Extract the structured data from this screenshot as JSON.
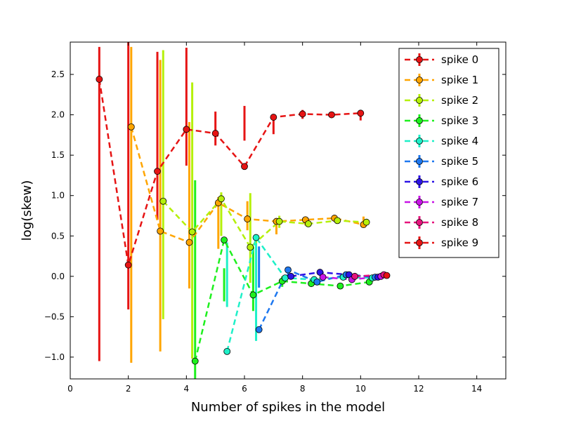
{
  "chart_data": {
    "type": "scatter",
    "title": "",
    "xlabel": "Number of spikes in the model",
    "ylabel": "log(skew)",
    "xlim": [
      0,
      15
    ],
    "ylim": [
      -1.27,
      2.9
    ],
    "xticks": [
      "0",
      "2",
      "4",
      "6",
      "8",
      "10",
      "12",
      "14"
    ],
    "xtick_values": [
      0,
      2,
      4,
      6,
      8,
      10,
      12,
      14
    ],
    "yticks": [
      "−1.0",
      "−0.5",
      "0.0",
      "0.5",
      "1.0",
      "1.5",
      "2.0",
      "2.5"
    ],
    "ytick_values": [
      -1.0,
      -0.5,
      0.0,
      0.5,
      1.0,
      1.5,
      2.0,
      2.5
    ],
    "grid": false,
    "legend_position": "top-right",
    "series": [
      {
        "name": "spike 0",
        "color": "#e61414",
        "points": [
          {
            "x": 1.0,
            "y": 2.44,
            "lo": -1.05,
            "hi": 2.84
          },
          {
            "x": 2.0,
            "y": 0.14,
            "lo": -0.41,
            "hi": 2.9
          },
          {
            "x": 3.0,
            "y": 1.3,
            "lo": 0.7,
            "hi": 2.78
          },
          {
            "x": 4.0,
            "y": 1.82,
            "lo": 1.37,
            "hi": 2.83
          },
          {
            "x": 5.0,
            "y": 1.77,
            "lo": 1.62,
            "hi": 2.04
          },
          {
            "x": 6.0,
            "y": 1.36,
            "lo": 1.68,
            "hi": 2.11
          },
          {
            "x": 7.0,
            "y": 1.97,
            "lo": 1.76,
            "hi": 2.0
          },
          {
            "x": 8.0,
            "y": 2.01,
            "lo": 1.95,
            "hi": 2.06
          },
          {
            "x": 9.0,
            "y": 2.0,
            "lo": 1.98,
            "hi": 2.02
          },
          {
            "x": 10.0,
            "y": 2.02,
            "lo": 1.93,
            "hi": 2.06
          }
        ]
      },
      {
        "name": "spike 1",
        "color": "#ffa500",
        "points": [
          {
            "x": 2.1,
            "y": 1.85,
            "lo": -1.07,
            "hi": 2.84
          },
          {
            "x": 3.1,
            "y": 0.56,
            "lo": -0.93,
            "hi": 2.68
          },
          {
            "x": 4.1,
            "y": 0.42,
            "lo": -0.15,
            "hi": 1.91
          },
          {
            "x": 5.1,
            "y": 0.91,
            "lo": 0.34,
            "hi": 0.98
          },
          {
            "x": 6.1,
            "y": 0.71,
            "lo": 0.57,
            "hi": 0.93
          },
          {
            "x": 7.1,
            "y": 0.68,
            "lo": 0.52,
            "hi": 0.72
          },
          {
            "x": 8.1,
            "y": 0.7,
            "lo": 0.63,
            "hi": 0.74
          },
          {
            "x": 9.1,
            "y": 0.72,
            "lo": 0.69,
            "hi": 0.75
          },
          {
            "x": 10.1,
            "y": 0.64,
            "lo": 0.61,
            "hi": 0.74
          }
        ]
      },
      {
        "name": "spike 2",
        "color": "#b5f00a",
        "points": [
          {
            "x": 3.2,
            "y": 0.93,
            "lo": -0.53,
            "hi": 2.8
          },
          {
            "x": 4.2,
            "y": 0.55,
            "lo": -1.02,
            "hi": 2.4
          },
          {
            "x": 5.2,
            "y": 0.96,
            "lo": 0.5,
            "hi": 1.04
          },
          {
            "x": 6.2,
            "y": 0.36,
            "lo": -0.08,
            "hi": 1.03
          },
          {
            "x": 7.2,
            "y": 0.68,
            "lo": 0.6,
            "hi": 0.75
          },
          {
            "x": 8.2,
            "y": 0.65,
            "lo": 0.62,
            "hi": 0.69
          },
          {
            "x": 9.2,
            "y": 0.69,
            "lo": 0.67,
            "hi": 0.72
          },
          {
            "x": 10.2,
            "y": 0.67,
            "lo": 0.64,
            "hi": 0.71
          }
        ]
      },
      {
        "name": "spike 3",
        "color": "#1ef01e",
        "points": [
          {
            "x": 4.3,
            "y": -1.05,
            "lo": -1.27,
            "hi": 1.19
          },
          {
            "x": 5.3,
            "y": 0.45,
            "lo": -0.31,
            "hi": 0.1
          },
          {
            "x": 6.3,
            "y": -0.23,
            "lo": -0.43,
            "hi": 0.37
          },
          {
            "x": 7.3,
            "y": -0.06,
            "lo": -0.13,
            "hi": 0.0
          },
          {
            "x": 8.3,
            "y": -0.09,
            "lo": -0.11,
            "hi": -0.04
          },
          {
            "x": 9.3,
            "y": -0.12,
            "lo": -0.13,
            "hi": -0.09
          },
          {
            "x": 10.3,
            "y": -0.07,
            "lo": -0.09,
            "hi": -0.04
          }
        ]
      },
      {
        "name": "spike 4",
        "color": "#1ef0c8",
        "points": [
          {
            "x": 5.4,
            "y": -0.93,
            "lo": -0.38,
            "hi": 0.42
          },
          {
            "x": 6.4,
            "y": 0.48,
            "lo": -0.8,
            "hi": 0.5
          },
          {
            "x": 7.4,
            "y": -0.02,
            "lo": -0.04,
            "hi": 0.02
          },
          {
            "x": 8.4,
            "y": -0.04,
            "lo": -0.06,
            "hi": -0.02
          },
          {
            "x": 9.4,
            "y": -0.01,
            "lo": -0.03,
            "hi": 0.01
          },
          {
            "x": 10.4,
            "y": -0.02,
            "lo": -0.04,
            "hi": 0.0
          }
        ]
      },
      {
        "name": "spike 5",
        "color": "#1e78f0",
        "points": [
          {
            "x": 6.5,
            "y": -0.66,
            "lo": -0.14,
            "hi": 0.37
          },
          {
            "x": 7.5,
            "y": 0.08,
            "lo": 0.01,
            "hi": 0.1
          },
          {
            "x": 8.5,
            "y": -0.07,
            "lo": -0.09,
            "hi": -0.05
          },
          {
            "x": 9.5,
            "y": 0.02,
            "lo": 0.0,
            "hi": 0.04
          },
          {
            "x": 10.5,
            "y": -0.01,
            "lo": -0.03,
            "hi": 0.01
          }
        ]
      },
      {
        "name": "spike 6",
        "color": "#2d14e6",
        "points": [
          {
            "x": 7.6,
            "y": 0.0,
            "lo": -0.02,
            "hi": 0.03
          },
          {
            "x": 8.6,
            "y": 0.05,
            "lo": 0.03,
            "hi": 0.07
          },
          {
            "x": 9.6,
            "y": 0.02,
            "lo": 0.0,
            "hi": 0.04
          },
          {
            "x": 10.6,
            "y": -0.01,
            "lo": -0.03,
            "hi": 0.01
          }
        ]
      },
      {
        "name": "spike 7",
        "color": "#c814e6",
        "points": [
          {
            "x": 8.7,
            "y": -0.01,
            "lo": -0.03,
            "hi": 0.01
          },
          {
            "x": 9.7,
            "y": -0.04,
            "lo": -0.06,
            "hi": -0.02
          },
          {
            "x": 10.7,
            "y": 0.0,
            "lo": -0.02,
            "hi": 0.02
          }
        ]
      },
      {
        "name": "spike 8",
        "color": "#e6147d",
        "points": [
          {
            "x": 9.8,
            "y": 0.0,
            "lo": -0.02,
            "hi": 0.02
          },
          {
            "x": 10.8,
            "y": 0.02,
            "lo": 0.0,
            "hi": 0.04
          }
        ]
      },
      {
        "name": "spike 9",
        "color": "#e61414",
        "points": [
          {
            "x": 10.9,
            "y": 0.01,
            "lo": -0.01,
            "hi": 0.03
          }
        ]
      }
    ]
  }
}
